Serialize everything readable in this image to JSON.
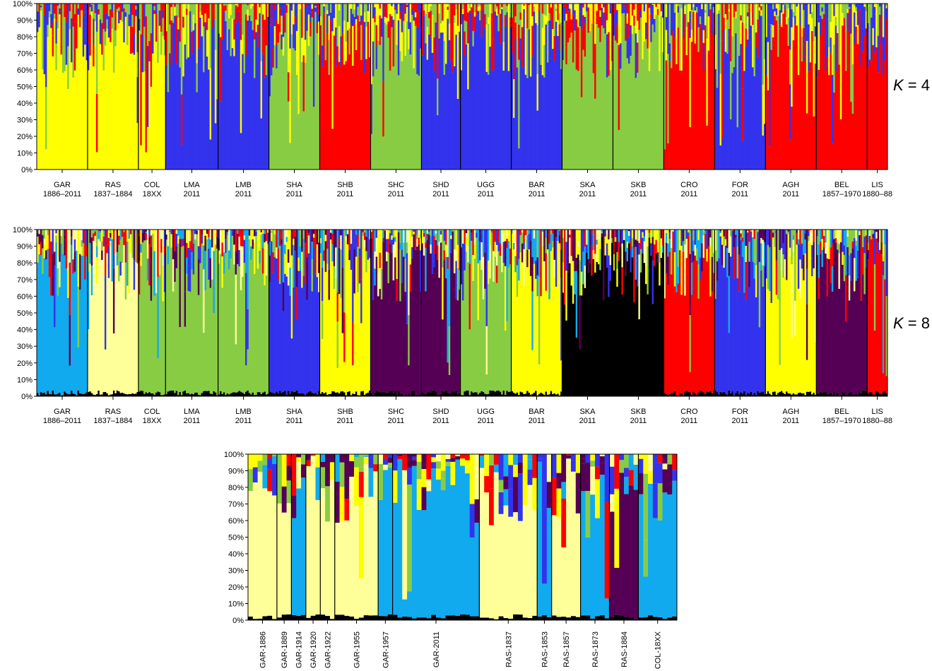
{
  "colors": {
    "yellow": "#ffff00",
    "blue": "#3333ee",
    "red": "#ff0000",
    "green": "#88cc44",
    "lightyellow": "#ffff99",
    "cyan": "#11aaee",
    "purple": "#550055",
    "black": "#000000"
  },
  "chart_data": [
    {
      "type": "stacked-bar",
      "panel": "K4",
      "k_label_k": "K",
      "k_label_rest": " = 4",
      "yticks": [
        "0%",
        "10%",
        "20%",
        "30%",
        "40%",
        "50%",
        "60%",
        "70%",
        "80%",
        "90%",
        "100%"
      ],
      "ylim": [
        0,
        100
      ],
      "groups": [
        {
          "code": "GAR",
          "years": "1886–2011",
          "n": 30,
          "dominant": "yellow"
        },
        {
          "code": "RAS",
          "years": "1837–1884",
          "n": 30,
          "dominant": "yellow"
        },
        {
          "code": "COL",
          "years": "18XX",
          "n": 16,
          "dominant": "yellow"
        },
        {
          "code": "LMA",
          "years": "2011",
          "n": 31,
          "dominant": "blue"
        },
        {
          "code": "LMB",
          "years": "2011",
          "n": 30,
          "dominant": "blue"
        },
        {
          "code": "SHA",
          "years": "2011",
          "n": 30,
          "dominant": "green"
        },
        {
          "code": "SHB",
          "years": "2011",
          "n": 30,
          "dominant": "red"
        },
        {
          "code": "SHC",
          "years": "2011",
          "n": 30,
          "dominant": "green"
        },
        {
          "code": "SHD",
          "years": "2011",
          "n": 23,
          "dominant": "blue"
        },
        {
          "code": "UGG",
          "years": "2011",
          "n": 30,
          "dominant": "blue"
        },
        {
          "code": "BAR",
          "years": "2011",
          "n": 30,
          "dominant": "blue"
        },
        {
          "code": "SKA",
          "years": "2011",
          "n": 30,
          "dominant": "green"
        },
        {
          "code": "SKB",
          "years": "2011",
          "n": 30,
          "dominant": "green"
        },
        {
          "code": "CRO",
          "years": "2011",
          "n": 30,
          "dominant": "red"
        },
        {
          "code": "FOR",
          "years": "2011",
          "n": 30,
          "dominant": "blue"
        },
        {
          "code": "AGH",
          "years": "2011",
          "n": 30,
          "dominant": "red"
        },
        {
          "code": "BEL",
          "years": "1857–1970",
          "n": 30,
          "dominant": "red"
        },
        {
          "code": "LIS",
          "years": "1880–88",
          "n": 12,
          "dominant": "red"
        }
      ]
    },
    {
      "type": "stacked-bar",
      "panel": "K8",
      "k_label_k": "K",
      "k_label_rest": " = 8",
      "yticks": [
        "0%",
        "10%",
        "20%",
        "30%",
        "40%",
        "50%",
        "60%",
        "70%",
        "80%",
        "90%",
        "100%"
      ],
      "ylim": [
        0,
        100
      ],
      "groups": [
        {
          "code": "GAR",
          "years": "1886–2011",
          "n": 30,
          "dominant": "cyan"
        },
        {
          "code": "RAS",
          "years": "1837–1884",
          "n": 30,
          "dominant": "lightyellow"
        },
        {
          "code": "COL",
          "years": "18XX",
          "n": 16,
          "dominant": "green"
        },
        {
          "code": "LMA",
          "years": "2011",
          "n": 31,
          "dominant": "green"
        },
        {
          "code": "LMB",
          "years": "2011",
          "n": 30,
          "dominant": "green"
        },
        {
          "code": "SHA",
          "years": "2011",
          "n": 30,
          "dominant": "blue"
        },
        {
          "code": "SHB",
          "years": "2011",
          "n": 30,
          "dominant": "yellow"
        },
        {
          "code": "SHC",
          "years": "2011",
          "n": 30,
          "dominant": "purple"
        },
        {
          "code": "SHD",
          "years": "2011",
          "n": 23,
          "dominant": "purple"
        },
        {
          "code": "UGG",
          "years": "2011",
          "n": 30,
          "dominant": "green"
        },
        {
          "code": "BAR",
          "years": "2011",
          "n": 30,
          "dominant": "yellow"
        },
        {
          "code": "SKA",
          "years": "2011",
          "n": 30,
          "dominant": "black"
        },
        {
          "code": "SKB",
          "years": "2011",
          "n": 30,
          "dominant": "black"
        },
        {
          "code": "CRO",
          "years": "2011",
          "n": 30,
          "dominant": "red"
        },
        {
          "code": "FOR",
          "years": "2011",
          "n": 30,
          "dominant": "blue"
        },
        {
          "code": "AGH",
          "years": "2011",
          "n": 30,
          "dominant": "yellow"
        },
        {
          "code": "BEL",
          "years": "1857–1970",
          "n": 30,
          "dominant": "purple"
        },
        {
          "code": "LIS",
          "years": "1880–88",
          "n": 12,
          "dominant": "red"
        }
      ]
    },
    {
      "type": "stacked-bar",
      "panel": "K8-historical",
      "yticks": [
        "0%",
        "10%",
        "20%",
        "30%",
        "40%",
        "50%",
        "60%",
        "70%",
        "80%",
        "90%",
        "100%"
      ],
      "ylim": [
        0,
        100
      ],
      "groups": [
        {
          "code": "GAR-1886",
          "n": 6,
          "dominant": "lightyellow"
        },
        {
          "code": "GAR-1889",
          "n": 3,
          "dominant": "lightyellow"
        },
        {
          "code": "GAR-1914",
          "n": 3,
          "dominant": "cyan"
        },
        {
          "code": "GAR-1920",
          "n": 3,
          "dominant": "lightyellow"
        },
        {
          "code": "GAR-1922",
          "n": 3,
          "dominant": "lightyellow"
        },
        {
          "code": "GAR-1955",
          "n": 9,
          "dominant": "lightyellow"
        },
        {
          "code": "GAR-1957",
          "n": 3,
          "dominant": "cyan"
        },
        {
          "code": "GAR-2011",
          "n": 18,
          "dominant": "cyan"
        },
        {
          "code": "RAS-1837",
          "n": 12,
          "dominant": "lightyellow"
        },
        {
          "code": "RAS-1853",
          "n": 3,
          "dominant": "cyan"
        },
        {
          "code": "RAS-1857",
          "n": 6,
          "dominant": "lightyellow"
        },
        {
          "code": "RAS-1873",
          "n": 6,
          "dominant": "cyan"
        },
        {
          "code": "RAS-1884",
          "n": 6,
          "dominant": "purple"
        },
        {
          "code": "COL-18XX",
          "n": 8,
          "dominant": "cyan"
        }
      ]
    }
  ]
}
